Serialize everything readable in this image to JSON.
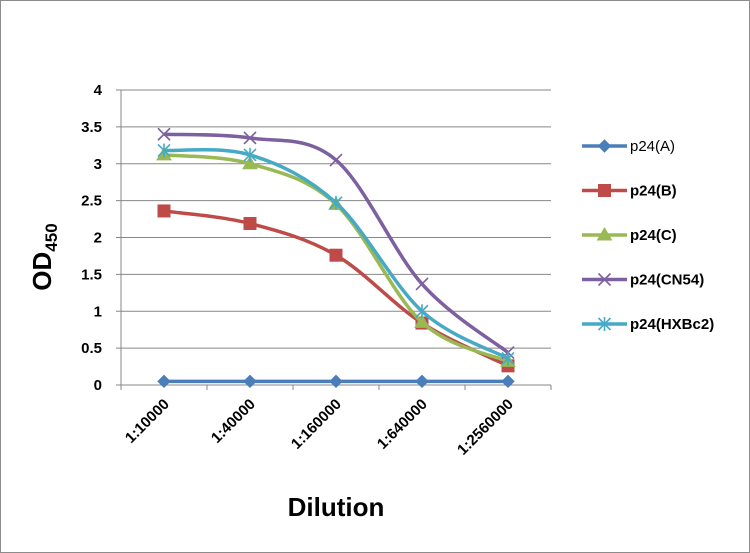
{
  "chart_data": {
    "type": "line",
    "title": "",
    "xlabel": "Dilution",
    "ylabel": "OD",
    "ylabel_subscript": "450",
    "categories": [
      "1:10000",
      "1:40000",
      "1:160000",
      "1:640000",
      "1:2560000"
    ],
    "yticks": [
      "0",
      "0.5",
      "1",
      "1.5",
      "2",
      "2.5",
      "3",
      "3.5",
      "4"
    ],
    "ylim": [
      0,
      4
    ],
    "grid": "horizontal",
    "legend_position": "right",
    "smooth": true,
    "series": [
      {
        "name": "p24(A)",
        "color": "#4a7ebb",
        "marker": "diamond",
        "values": [
          0.05,
          0.05,
          0.05,
          0.05,
          0.05
        ]
      },
      {
        "name": "p24(B)",
        "color": "#be4b48",
        "marker": "square",
        "values": [
          2.36,
          2.19,
          1.76,
          0.84,
          0.26
        ]
      },
      {
        "name": "p24(C)",
        "color": "#98b954",
        "marker": "triangle",
        "values": [
          3.12,
          3.0,
          2.45,
          0.85,
          0.32
        ]
      },
      {
        "name": "p24(CN54)",
        "color": "#7d60a0",
        "marker": "x",
        "values": [
          3.4,
          3.35,
          3.05,
          1.37,
          0.44
        ]
      },
      {
        "name": "p24(HXBc2)",
        "color": "#46aac5",
        "marker": "star",
        "values": [
          3.18,
          3.12,
          2.47,
          1.0,
          0.36
        ]
      }
    ]
  }
}
